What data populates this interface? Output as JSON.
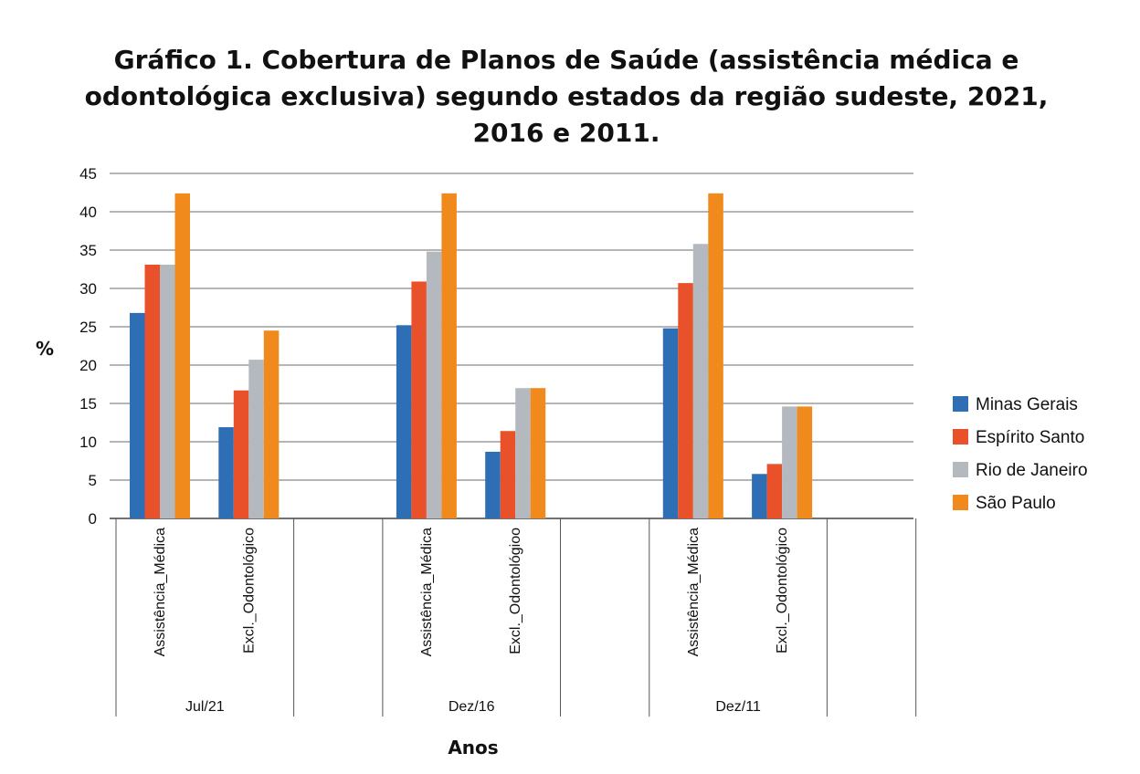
{
  "chart_data": {
    "type": "bar",
    "title_lines": [
      "Gráfico 1. Cobertura de Planos de Saúde (assistência médica e",
      "odontológica exclusiva) segundo estados da região sudeste, 2021,",
      "2016 e 2011."
    ],
    "ylabel": "%",
    "xlabel": "Anos",
    "ylim": [
      0,
      45
    ],
    "yticks": [
      0,
      5,
      10,
      15,
      20,
      25,
      30,
      35,
      40,
      45
    ],
    "grid": true,
    "legend_position": "right",
    "groups": [
      {
        "label": "Jul/21",
        "categories": [
          "Assistência_Médica",
          "Excl._Odontológico"
        ]
      },
      {
        "label": "Dez/16",
        "categories": [
          "Assistência_Médica",
          "Excl._Odontológioo"
        ]
      },
      {
        "label": "Dez/11",
        "categories": [
          "Assistência_Médica",
          "Excl._Odontológico"
        ]
      }
    ],
    "series": [
      {
        "name": "Minas Gerais",
        "color": "#2e6eb5",
        "values": [
          26.8,
          11.9,
          25.2,
          8.7,
          24.8,
          5.8
        ]
      },
      {
        "name": "Espírito Santo",
        "color": "#e8512a",
        "values": [
          33.1,
          16.7,
          30.9,
          11.4,
          30.7,
          7.1
        ]
      },
      {
        "name": "Rio de Janeiro",
        "color": "#b4b9bf",
        "values": [
          33.1,
          20.7,
          34.8,
          17.0,
          35.8,
          14.6
        ]
      },
      {
        "name": "São Paulo",
        "color": "#f08a1c",
        "values": [
          42.4,
          24.5,
          42.4,
          17.0,
          42.4,
          14.6
        ]
      }
    ]
  }
}
